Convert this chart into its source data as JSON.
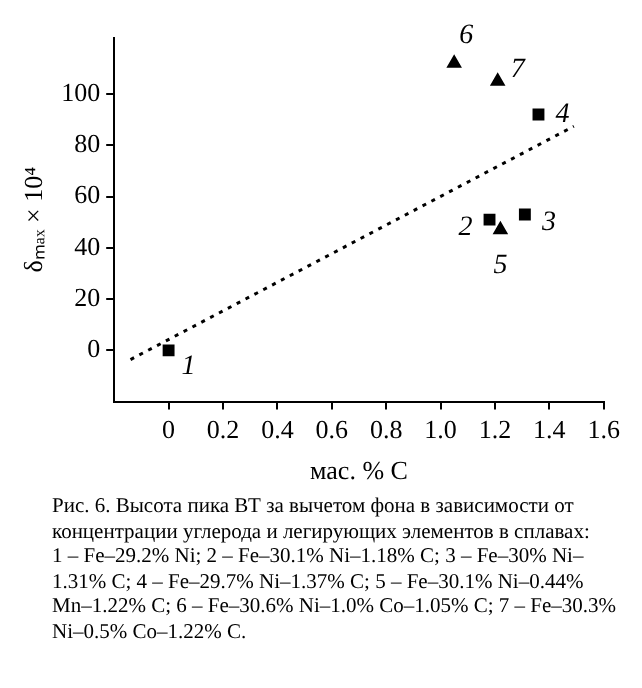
{
  "chart_data": {
    "type": "scatter",
    "xlabel": "мас. % C",
    "ylabel": "δₘₐₓ × 10⁴",
    "xlim": [
      -0.2,
      1.6
    ],
    "ylim": [
      -20,
      122
    ],
    "xticks": [
      0,
      0.2,
      0.4,
      0.6,
      0.8,
      {
        "value": 1,
        "label": "1.0"
      },
      1.2,
      1.4,
      1.6
    ],
    "yticks": [
      0,
      20,
      40,
      60,
      80,
      100
    ],
    "grid": false,
    "legend": false,
    "series": [
      {
        "marker": "square",
        "color": "#000000",
        "x": [
          0,
          1.18,
          1.31,
          1.36
        ],
        "values": [
          0,
          51,
          53,
          92
        ]
      },
      {
        "marker": "triangle",
        "color": "#000000",
        "x": [
          1.22
        ],
        "values": [
          47
        ]
      },
      {
        "marker": "triangle",
        "color": "#000000",
        "x": [
          1.05,
          1.21
        ],
        "values": [
          112,
          105
        ]
      },
      {
        "type": "line",
        "marker": "none",
        "line_style": "dotted",
        "color": "#000000",
        "x": [
          -0.14,
          1.49
        ],
        "values": [
          -3.6,
          87.4
        ]
      }
    ],
    "annotations": [
      {
        "text": "1",
        "x": 0,
        "y": 0
      },
      {
        "text": "2",
        "x": 1.18,
        "y": 51
      },
      {
        "text": "3",
        "x": 1.31,
        "y": 53
      },
      {
        "text": "4",
        "x": 1.36,
        "y": 92
      },
      {
        "text": "5",
        "x": 1.22,
        "y": 47
      },
      {
        "text": "6",
        "x": 1.05,
        "y": 112
      },
      {
        "text": "7",
        "x": 1.21,
        "y": 105
      },
      "Рис. 6. Высота пика ВТ за вычетом фона в зависимости от концентрации углерода и легирующих элементов в сплавах:",
      "1 – Fe–29.2% Ni; 2 – Fe–30.1% Ni–1.18% C; 3 – Fe–30% Ni–1.31% C; 4 – Fe–29.7% Ni–1.37% C; 5 – Fe–30.1% Ni–0.44% Mn–1.22% C; 6 – Fe–30.6% Ni–1.0% Co–1.05% C; 7 – Fe–30.3% Ni–0.5% Co–1.22% C."
    ]
  }
}
